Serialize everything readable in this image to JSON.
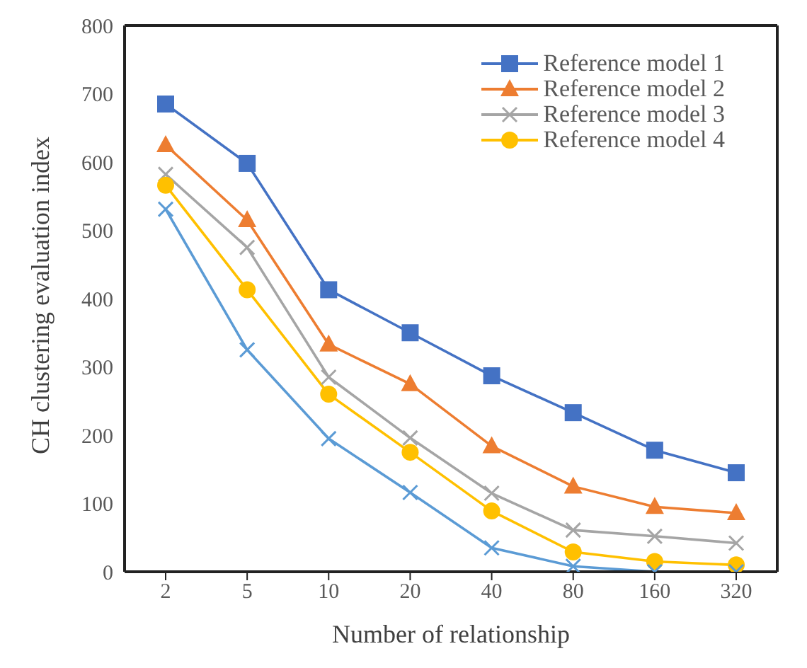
{
  "chart_data": {
    "type": "line",
    "xlabel": "Number of relationship",
    "ylabel": "CH clustering evaluation index",
    "categories": [
      "2",
      "5",
      "10",
      "20",
      "40",
      "80",
      "160",
      "320"
    ],
    "ylim": [
      0,
      800
    ],
    "yticks": [
      0,
      100,
      200,
      300,
      400,
      500,
      600,
      700,
      800
    ],
    "grid": false,
    "legend": "top right",
    "line_style": "solid",
    "series": [
      {
        "name": "Reference model 1",
        "color": "#4472c4",
        "marker": "square",
        "values": [
          685,
          598,
          413,
          350,
          287,
          233,
          178,
          145
        ]
      },
      {
        "name": "Reference model 2",
        "color": "#ed7d31",
        "marker": "triangle",
        "values": [
          625,
          515,
          333,
          275,
          184,
          125,
          95,
          86
        ]
      },
      {
        "name": "Reference model 3",
        "color": "#a5a5a5",
        "marker": "cross",
        "values": [
          582,
          475,
          285,
          196,
          115,
          61,
          52,
          42
        ]
      },
      {
        "name": "Reference model 4",
        "color": "#ffc000",
        "marker": "circle",
        "values": [
          566,
          413,
          260,
          175,
          89,
          29,
          15,
          10
        ]
      },
      {
        "color": "#5b9bd5",
        "marker": "cross",
        "values": [
          531,
          325,
          195,
          116,
          35,
          8,
          0,
          0
        ]
      }
    ]
  }
}
